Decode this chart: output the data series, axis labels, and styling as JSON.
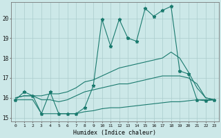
{
  "title": "",
  "xlabel": "Humidex (Indice chaleur)",
  "bg_color": "#cce8e8",
  "line_color": "#1a7a6e",
  "grid_color": "#aacccc",
  "xlim": [
    -0.5,
    23.5
  ],
  "ylim": [
    14.8,
    20.8
  ],
  "yticks": [
    15,
    16,
    17,
    18,
    19,
    20
  ],
  "xticks": [
    0,
    1,
    2,
    3,
    4,
    5,
    6,
    7,
    8,
    9,
    10,
    11,
    12,
    13,
    14,
    15,
    16,
    17,
    18,
    19,
    20,
    21,
    22,
    23
  ],
  "series": [
    {
      "x": [
        0,
        1,
        2,
        3,
        4,
        5,
        6,
        7,
        8,
        9,
        10,
        11,
        12,
        13,
        14,
        15,
        16,
        17,
        18,
        19,
        20,
        21,
        22,
        23
      ],
      "y": [
        15.9,
        16.3,
        16.1,
        15.2,
        16.3,
        15.2,
        15.2,
        15.2,
        15.5,
        16.6,
        19.95,
        18.6,
        19.95,
        19.0,
        18.85,
        20.5,
        20.1,
        20.4,
        20.6,
        17.35,
        17.2,
        15.9,
        15.85,
        15.9
      ],
      "marker": "*",
      "markersize": 3.5
    },
    {
      "x": [
        0,
        1,
        2,
        3,
        4,
        5,
        6,
        7,
        8,
        9,
        10,
        11,
        12,
        13,
        14,
        15,
        16,
        17,
        18,
        19,
        20,
        21,
        22,
        23
      ],
      "y": [
        16.0,
        16.1,
        16.1,
        16.1,
        16.2,
        16.2,
        16.3,
        16.5,
        16.8,
        16.9,
        17.1,
        17.3,
        17.5,
        17.6,
        17.7,
        17.8,
        17.9,
        18.0,
        18.3,
        18.0,
        17.3,
        16.5,
        16.0,
        15.9
      ],
      "marker": "",
      "markersize": 0
    },
    {
      "x": [
        0,
        1,
        2,
        3,
        4,
        5,
        6,
        7,
        8,
        9,
        10,
        11,
        12,
        13,
        14,
        15,
        16,
        17,
        18,
        19,
        20,
        21,
        22,
        23
      ],
      "y": [
        16.0,
        16.1,
        16.1,
        15.9,
        15.9,
        15.8,
        15.9,
        16.1,
        16.3,
        16.4,
        16.5,
        16.6,
        16.7,
        16.7,
        16.8,
        16.9,
        17.0,
        17.1,
        17.1,
        17.1,
        17.0,
        16.7,
        16.0,
        15.9
      ],
      "marker": "",
      "markersize": 0
    },
    {
      "x": [
        0,
        1,
        2,
        3,
        4,
        5,
        6,
        7,
        8,
        9,
        10,
        11,
        12,
        13,
        14,
        15,
        16,
        17,
        18,
        19,
        20,
        21,
        22,
        23
      ],
      "y": [
        15.9,
        15.9,
        15.9,
        15.2,
        15.2,
        15.2,
        15.2,
        15.2,
        15.3,
        15.35,
        15.45,
        15.5,
        15.5,
        15.55,
        15.6,
        15.65,
        15.7,
        15.75,
        15.8,
        15.8,
        15.85,
        15.9,
        15.9,
        15.9
      ],
      "marker": "",
      "markersize": 0
    }
  ]
}
